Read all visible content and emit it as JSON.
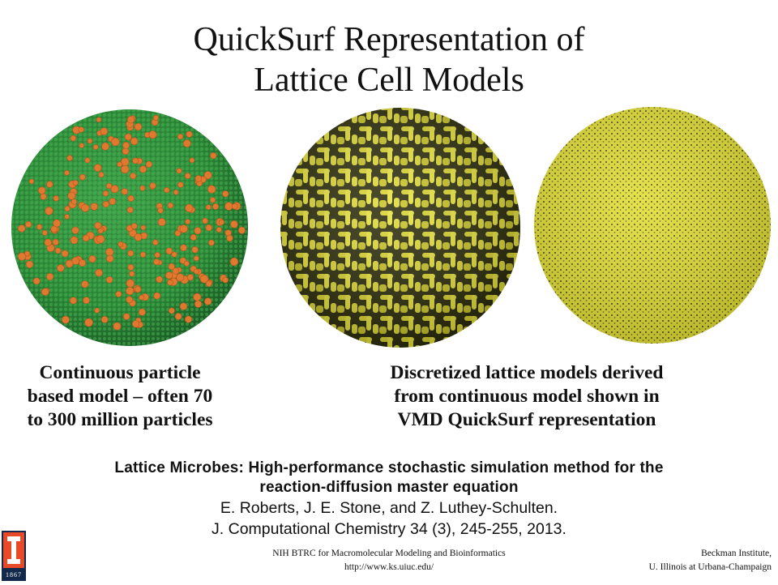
{
  "title": {
    "line1": "QuickSurf Representation of",
    "line2": "Lattice Cell Models"
  },
  "images": [
    {
      "name": "continuous-particle-sphere",
      "description_colors": [
        "#2e8a3a",
        "#e0782f"
      ]
    },
    {
      "name": "lattice-quicksurf-sphere",
      "description_colors": [
        "#d6d02a",
        "#3a3a10"
      ]
    },
    {
      "name": "fine-lattice-sphere",
      "description_colors": [
        "#e4e03a",
        "#5a5a20"
      ]
    }
  ],
  "captions": {
    "left": [
      "Continuous particle",
      "based model –  often 70",
      "to 300 million particles"
    ],
    "right": [
      "Discretized lattice models derived",
      "from continuous model shown in",
      "VMD QuickSurf representation"
    ]
  },
  "citation": {
    "paper_line1": "Lattice Microbes: High-performance stochastic simulation method for the",
    "paper_line2": "reaction-diffusion master equation",
    "authors": "E. Roberts, J. E. Stone, and Z. Luthey-Schulten.",
    "journal": "J. Computational Chemistry 34 (3), 245-255, 2013."
  },
  "footer": {
    "center_line1": "NIH BTRC for Macromolecular Modeling and Bioinformatics",
    "center_line2": "http://www.ks.uiuc.edu/",
    "right_line1": "Beckman Institute,",
    "right_line2": "U. Illinois at Urbana-Champaign"
  },
  "logo": {
    "mark": "I",
    "year": "1867"
  },
  "colors": {
    "logo_navy": "#13294b",
    "logo_orange": "#e84a27"
  }
}
